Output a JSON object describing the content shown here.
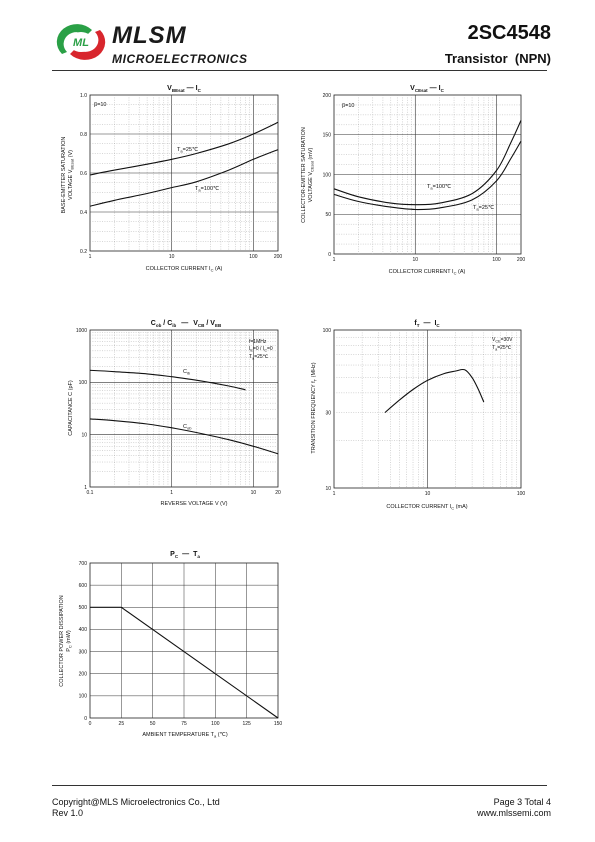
{
  "header": {
    "brand": "MLSM",
    "brand_sub": "MICROELECTRONICS",
    "logo_letters": "ML",
    "part_number": "2SC4548",
    "part_type": "Transistor  (NPN)",
    "colors": {
      "logo_green": "#2aa046",
      "logo_red": "#d8262d"
    }
  },
  "chart_data": [
    {
      "type": "line",
      "title": {
        "main": "V",
        "main_sub": "BEsat",
        "rel": "—",
        "vs": "I",
        "vs_sub": "C"
      },
      "xlabel": "COLLECTOR CURRENT   I",
      "xlabel_sub": "C",
      "xlabel_unit": "  (A)",
      "ylabel": [
        "BASE-EMITTER SATURATION",
        "VOLTAGE  V",
        "BEsat",
        "  (V)"
      ],
      "xscale": "log",
      "xlim": [
        1,
        200
      ],
      "xticks": [
        "1",
        "10",
        "100",
        "200"
      ],
      "ylim": [
        0.2,
        1.0
      ],
      "yticks": [
        "0.2",
        "0.4",
        "0.6",
        "0.8",
        "1.0"
      ],
      "annotations": [
        {
          "text": "β=10"
        },
        {
          "text": "T",
          "sub": "a",
          "rest": "=25℃"
        },
        {
          "text": "T",
          "sub": "a",
          "rest": "=100℃"
        }
      ],
      "series": [
        {
          "x": [
            1,
            2,
            5,
            10,
            20,
            50,
            100,
            200
          ],
          "y": [
            0.59,
            0.615,
            0.645,
            0.67,
            0.7,
            0.75,
            0.8,
            0.86
          ]
        },
        {
          "x": [
            1,
            2,
            5,
            10,
            20,
            50,
            100,
            200
          ],
          "y": [
            0.43,
            0.46,
            0.495,
            0.525,
            0.555,
            0.615,
            0.67,
            0.72
          ]
        }
      ]
    },
    {
      "type": "line",
      "title": {
        "main": "V",
        "main_sub": "CEsat",
        "rel": "—",
        "vs": "I",
        "vs_sub": "C"
      },
      "xlabel": "COLLECTOR CURRENT   I",
      "xlabel_sub": "C",
      "xlabel_unit": "  (A)",
      "ylabel": [
        "COLLECTOR-EMITTER SATURATION",
        "VOLTAGE  V",
        "CEsat",
        "  (mV)"
      ],
      "xscale": "log",
      "xlim": [
        1,
        200
      ],
      "xticks": [
        "1",
        "10",
        "100",
        "200"
      ],
      "ylim": [
        0,
        200
      ],
      "yticks": [
        "0",
        "50",
        "100",
        "150",
        "200"
      ],
      "annotations": [
        {
          "text": "β=10"
        },
        {
          "text": "T",
          "sub": "a",
          "rest": "=100℃"
        },
        {
          "text": "T",
          "sub": "a",
          "rest": "=25℃"
        }
      ],
      "series": [
        {
          "x": [
            1,
            2,
            5,
            10,
            20,
            50,
            100,
            150,
            200
          ],
          "y": [
            82,
            72,
            64,
            62,
            64,
            76,
            105,
            140,
            168
          ]
        },
        {
          "x": [
            1,
            2,
            5,
            10,
            20,
            50,
            100,
            150,
            200
          ],
          "y": [
            75,
            66,
            59,
            56,
            58,
            68,
            92,
            120,
            142
          ]
        }
      ]
    },
    {
      "type": "line",
      "title": {
        "main": "C",
        "main_sub": "ob",
        "sep": " / ",
        "main2": "C",
        "main2_sub": "ib",
        "rel": "—",
        "vs": "V",
        "vs_sub": "CB",
        "vs_sep": " / ",
        "vs2": "V",
        "vs2_sub": "EB"
      },
      "xlabel": "REVERSE  VOLTAGE   V   (V)",
      "ylabel": [
        "CAPACITANCE  C   (pF)"
      ],
      "xscale": "log",
      "xlim": [
        0.1,
        20
      ],
      "xticks": [
        "0.1",
        "1",
        "10",
        "20"
      ],
      "yscale": "log",
      "ylim": [
        1,
        1000
      ],
      "yticks": [
        "1",
        "10",
        "100",
        "1000"
      ],
      "annotations": [
        {
          "text": "f=1MHz"
        },
        {
          "text": "I",
          "sub": "E",
          "rest": "=0 / I",
          "sub2": "C",
          "rest2": "=0"
        },
        {
          "text": "T",
          "sub": "a",
          "rest": "=25℃"
        }
      ],
      "series": [
        {
          "name": "Cib",
          "label": "C",
          "label_sub": "ib",
          "x": [
            0.1,
            0.2,
            0.5,
            1,
            2,
            5,
            8
          ],
          "y": [
            170,
            160,
            145,
            128,
            110,
            85,
            72
          ]
        },
        {
          "name": "Cob",
          "label": "C",
          "label_sub": "ob",
          "x": [
            0.1,
            0.2,
            0.5,
            1,
            2,
            5,
            10,
            20
          ],
          "y": [
            20,
            18.5,
            16,
            13.5,
            11,
            8,
            6,
            4.3
          ]
        }
      ]
    },
    {
      "type": "line",
      "title": {
        "main": "f",
        "main_sub": "T",
        "rel": "—",
        "vs": "I",
        "vs_sub": "C"
      },
      "xlabel": "COLLECTOR CURRENT   I",
      "xlabel_sub": "C",
      "xlabel_unit": "   (mA)",
      "ylabel": [
        "TRANSITION FREQUENCY   f",
        "T",
        "   (MHz)"
      ],
      "xscale": "log",
      "xlim": [
        1,
        100
      ],
      "xticks": [
        "1",
        "10",
        "100"
      ],
      "yscale": "log",
      "ylim": [
        10,
        100
      ],
      "yticks": [
        "10",
        "30",
        "100"
      ],
      "annotations": [
        {
          "text": "V",
          "sub": "CE",
          "rest": "=30V"
        },
        {
          "text": "T",
          "sub": "a",
          "rest": "=25℃"
        }
      ],
      "series": [
        {
          "x": [
            3.5,
            5,
            7,
            10,
            15,
            20,
            25,
            30,
            35,
            40
          ],
          "y": [
            30,
            36,
            42,
            48,
            53,
            55,
            56,
            50,
            42,
            35
          ]
        }
      ]
    },
    {
      "type": "line",
      "title": {
        "main": "P",
        "main_sub": "C",
        "rel": "—",
        "vs": "T",
        "vs_sub": "a"
      },
      "xlabel": "AMBIENT TEMPERATURE    T",
      "xlabel_sub": "a",
      "xlabel_unit": "   (℃)",
      "ylabel": [
        "COLLECTOR POWER DISSIPATION",
        "P",
        "C",
        "   (mW)"
      ],
      "xlim": [
        0,
        150
      ],
      "xticks": [
        "0",
        "25",
        "50",
        "75",
        "100",
        "125",
        "150"
      ],
      "ylim": [
        0,
        700
      ],
      "yticks": [
        "0",
        "100",
        "200",
        "300",
        "400",
        "500",
        "600",
        "700"
      ],
      "grid": true,
      "series": [
        {
          "x": [
            0,
            25,
            150
          ],
          "y": [
            500,
            500,
            0
          ]
        }
      ]
    }
  ],
  "footer": {
    "copyright": "Copyright@MLS Microelectronics Co., Ltd",
    "revision": "Rev 1.0",
    "page": "Page 3 Total 4",
    "website": "www.mlssemi.com"
  }
}
